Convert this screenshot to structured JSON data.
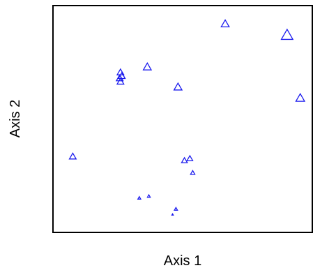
{
  "chart_data": {
    "type": "scatter",
    "title": "",
    "xlabel": "Axis 1",
    "ylabel": "Axis 2",
    "xlim": [
      0,
      100
    ],
    "ylim": [
      0,
      100
    ],
    "grid": false,
    "marker": "open-triangle",
    "marker_color": "#1a1aee",
    "points": [
      {
        "x": 66.5,
        "y": 92.1,
        "size": 3.3
      },
      {
        "x": 90.5,
        "y": 87.1,
        "size": 4.8
      },
      {
        "x": 36.3,
        "y": 73.0,
        "size": 3.3
      },
      {
        "x": 25.9,
        "y": 70.6,
        "size": 2.8
      },
      {
        "x": 26.4,
        "y": 69.0,
        "size": 2.8
      },
      {
        "x": 25.6,
        "y": 68.0,
        "size": 2.8
      },
      {
        "x": 25.9,
        "y": 66.5,
        "size": 2.8
      },
      {
        "x": 48.2,
        "y": 64.1,
        "size": 3.3
      },
      {
        "x": 95.6,
        "y": 59.2,
        "size": 3.6
      },
      {
        "x": 7.4,
        "y": 33.3,
        "size": 2.8
      },
      {
        "x": 50.7,
        "y": 31.5,
        "size": 2.4
      },
      {
        "x": 52.8,
        "y": 32.4,
        "size": 2.4
      },
      {
        "x": 53.9,
        "y": 26.1,
        "size": 1.8
      },
      {
        "x": 33.2,
        "y": 14.9,
        "size": 1.2
      },
      {
        "x": 36.9,
        "y": 15.7,
        "size": 1.2
      },
      {
        "x": 47.4,
        "y": 10.0,
        "size": 1.3
      },
      {
        "x": 46.1,
        "y": 7.6,
        "size": 0.6
      }
    ]
  }
}
